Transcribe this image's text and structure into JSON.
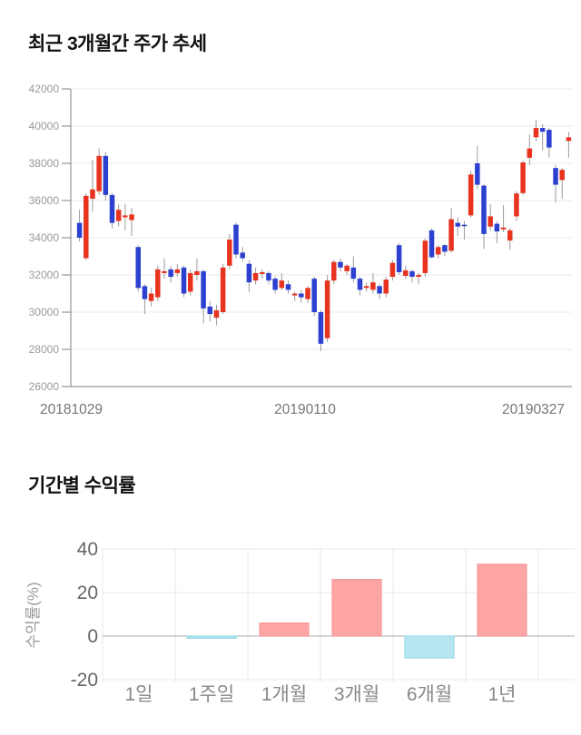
{
  "page": {
    "background": "#ffffff"
  },
  "price_chart": {
    "title": "최근 3개월간 주가 추세",
    "y_ticks": [
      42000,
      40000,
      38000,
      36000,
      34000,
      32000,
      30000,
      28000,
      26000
    ],
    "x_labels": [
      "20181029",
      "20190110",
      "20190327"
    ],
    "colors": {
      "up": "#e8331f",
      "down": "#2c41d0",
      "wick": "#9b9b9b",
      "grid": "#eaeaea",
      "axis": "#808080",
      "tick_text": "#999999",
      "date_text": "#757575"
    }
  },
  "returns_chart": {
    "title": "기간별 수익률",
    "ylabel": "수익률(%)",
    "y_ticks": [
      40,
      20,
      0,
      -20
    ],
    "colors": {
      "positive_fill": "#fda4a4",
      "positive_border": "#f79a9a",
      "negative_fill": "#b8e7f2",
      "negative_border": "#93d8e9",
      "grid": "#e9e9e9",
      "zero_line": "#ababab",
      "tick_text": "#666666",
      "category_text": "#888888",
      "ylabel_text": "#999999"
    }
  },
  "chart_data": [
    {
      "type": "candlestick",
      "title": "최근 3개월간 주가 추세",
      "ylim": [
        26000,
        42000
      ],
      "y_tick_step": 2000,
      "x_axis_dates": [
        "20181029",
        "20190110",
        "20190327"
      ],
      "grid": true,
      "candles_format": [
        "open",
        "high",
        "low",
        "close"
      ],
      "candles": [
        [
          34800,
          35500,
          33800,
          34000
        ],
        [
          32900,
          36400,
          32800,
          36250
        ],
        [
          36100,
          38200,
          35400,
          36600
        ],
        [
          36500,
          38800,
          36300,
          38400
        ],
        [
          38400,
          38600,
          36000,
          36300
        ],
        [
          36300,
          36400,
          34500,
          34800
        ],
        [
          34900,
          35800,
          34600,
          35500
        ],
        [
          35100,
          35800,
          34400,
          35200
        ],
        [
          34950,
          35600,
          34100,
          35250
        ],
        [
          33500,
          33600,
          31100,
          31300
        ],
        [
          31400,
          31500,
          29900,
          30700
        ],
        [
          30600,
          31300,
          30300,
          31000
        ],
        [
          30800,
          32500,
          30600,
          32300
        ],
        [
          32100,
          32900,
          31800,
          32200
        ],
        [
          32300,
          32500,
          31600,
          31900
        ],
        [
          32100,
          32600,
          31900,
          32300
        ],
        [
          32400,
          32500,
          30800,
          31000
        ],
        [
          31100,
          32300,
          30900,
          32100
        ],
        [
          32000,
          32900,
          31700,
          32200
        ],
        [
          32200,
          32300,
          29400,
          30200
        ],
        [
          30300,
          30600,
          29500,
          29900
        ],
        [
          29700,
          30400,
          29300,
          30100
        ],
        [
          30000,
          32600,
          29900,
          32400
        ],
        [
          32500,
          34200,
          32300,
          33900
        ],
        [
          34700,
          34800,
          32900,
          33100
        ],
        [
          33200,
          33500,
          32700,
          32900
        ],
        [
          32600,
          32800,
          31100,
          31600
        ],
        [
          31700,
          32400,
          31500,
          32100
        ],
        [
          32050,
          32300,
          31800,
          32150
        ],
        [
          32100,
          32200,
          31500,
          31700
        ],
        [
          31800,
          31900,
          31000,
          31200
        ],
        [
          31300,
          32100,
          31200,
          31700
        ],
        [
          31500,
          31700,
          31000,
          31200
        ],
        [
          30900,
          31100,
          30600,
          31000
        ],
        [
          31000,
          31200,
          30500,
          30800
        ],
        [
          30700,
          31400,
          30500,
          31300
        ],
        [
          31800,
          31900,
          29800,
          30000
        ],
        [
          30000,
          30100,
          27900,
          28300
        ],
        [
          28600,
          32000,
          28400,
          31700
        ],
        [
          31700,
          32800,
          31500,
          32700
        ],
        [
          32700,
          32900,
          32200,
          32400
        ],
        [
          32200,
          32600,
          32000,
          32500
        ],
        [
          32400,
          33000,
          31600,
          31800
        ],
        [
          31800,
          31900,
          30900,
          31200
        ],
        [
          31300,
          31600,
          31100,
          31400
        ],
        [
          31200,
          32100,
          31000,
          31600
        ],
        [
          31400,
          31500,
          30700,
          31000
        ],
        [
          31000,
          31900,
          30800,
          31750
        ],
        [
          31900,
          32800,
          31700,
          32650
        ],
        [
          33600,
          33700,
          32000,
          32150
        ],
        [
          31950,
          32500,
          31800,
          32250
        ],
        [
          32200,
          32300,
          31600,
          31900
        ],
        [
          31900,
          32100,
          31500,
          32000
        ],
        [
          32100,
          33950,
          31900,
          33840
        ],
        [
          34400,
          34500,
          32900,
          32950
        ],
        [
          33100,
          33600,
          32900,
          33500
        ],
        [
          33600,
          33650,
          33000,
          33250
        ],
        [
          33300,
          35600,
          33200,
          35000
        ],
        [
          34800,
          35100,
          34100,
          34600
        ],
        [
          34700,
          34900,
          33900,
          34650
        ],
        [
          35200,
          37600,
          35100,
          37400
        ],
        [
          38000,
          38950,
          36600,
          36850
        ],
        [
          36800,
          36900,
          33400,
          34200
        ],
        [
          34600,
          35800,
          34400,
          35150
        ],
        [
          34750,
          34900,
          33700,
          34340
        ],
        [
          34450,
          35750,
          34300,
          34550
        ],
        [
          33850,
          34500,
          33350,
          34400
        ],
        [
          35150,
          36500,
          34900,
          36380
        ],
        [
          36400,
          38150,
          36300,
          38050
        ],
        [
          38300,
          39540,
          37900,
          38800
        ],
        [
          39400,
          40350,
          39200,
          39900
        ],
        [
          39900,
          40100,
          38700,
          39700
        ],
        [
          39800,
          39900,
          38300,
          38850
        ],
        [
          37750,
          37900,
          35900,
          36850
        ],
        [
          37100,
          37750,
          36080,
          37650
        ],
        [
          39200,
          39700,
          38300,
          39400
        ]
      ]
    },
    {
      "type": "bar",
      "title": "기간별 수익률",
      "ylabel": "수익률(%)",
      "categories": [
        "1일",
        "1주일",
        "1개월",
        "3개월",
        "6개월",
        "1년"
      ],
      "values": [
        0,
        -1,
        6,
        26,
        -10,
        33
      ],
      "ylim": [
        -20,
        40
      ],
      "y_tick_step": 20,
      "grid": true,
      "legend": "none"
    }
  ]
}
